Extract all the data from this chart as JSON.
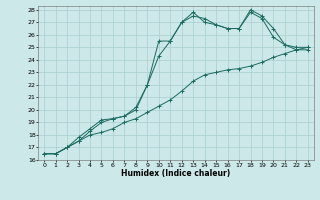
{
  "xlabel": "Humidex (Indice chaleur)",
  "ylabel": "",
  "bg_color": "#cce8e8",
  "line_color": "#1a6b60",
  "grid_color": "#aacece",
  "xlim": [
    -0.5,
    23.5
  ],
  "ylim": [
    16,
    28.3
  ],
  "yticks": [
    16,
    17,
    18,
    19,
    20,
    21,
    22,
    23,
    24,
    25,
    26,
    27,
    28
  ],
  "xticks": [
    0,
    1,
    2,
    3,
    4,
    5,
    6,
    7,
    8,
    9,
    10,
    11,
    12,
    13,
    14,
    15,
    16,
    17,
    18,
    19,
    20,
    21,
    22,
    23
  ],
  "line1_x": [
    0,
    1,
    2,
    3,
    4,
    5,
    6,
    7,
    8,
    9,
    10,
    11,
    12,
    13,
    14,
    15,
    16,
    17,
    18,
    19,
    20,
    21,
    22,
    23
  ],
  "line1_y": [
    16.5,
    16.5,
    17.0,
    17.5,
    18.0,
    18.2,
    18.5,
    19.0,
    19.3,
    19.8,
    20.3,
    20.8,
    21.5,
    22.3,
    22.8,
    23.0,
    23.2,
    23.3,
    23.5,
    23.8,
    24.2,
    24.5,
    24.8,
    25.0
  ],
  "line2_x": [
    0,
    1,
    2,
    3,
    4,
    5,
    6,
    7,
    8,
    9,
    10,
    11,
    12,
    13,
    14,
    15,
    16,
    17,
    18,
    19,
    20,
    21,
    22,
    23
  ],
  "line2_y": [
    16.5,
    16.5,
    17.0,
    17.8,
    18.5,
    19.2,
    19.3,
    19.5,
    20.0,
    22.0,
    25.5,
    25.5,
    27.0,
    27.8,
    27.0,
    26.8,
    26.5,
    26.5,
    27.8,
    27.3,
    25.8,
    25.2,
    25.0,
    25.0
  ],
  "line3_x": [
    0,
    1,
    2,
    3,
    4,
    5,
    6,
    7,
    8,
    9,
    10,
    11,
    12,
    13,
    14,
    15,
    16,
    17,
    18,
    19,
    20,
    21,
    22,
    23
  ],
  "line3_y": [
    16.5,
    16.5,
    17.0,
    17.5,
    18.3,
    19.0,
    19.3,
    19.5,
    20.2,
    22.0,
    24.3,
    25.5,
    27.0,
    27.5,
    27.3,
    26.8,
    26.5,
    26.5,
    28.0,
    27.5,
    26.5,
    25.2,
    24.8,
    24.8
  ],
  "xlabel_fontsize": 5.5,
  "tick_fontsize": 4.5
}
